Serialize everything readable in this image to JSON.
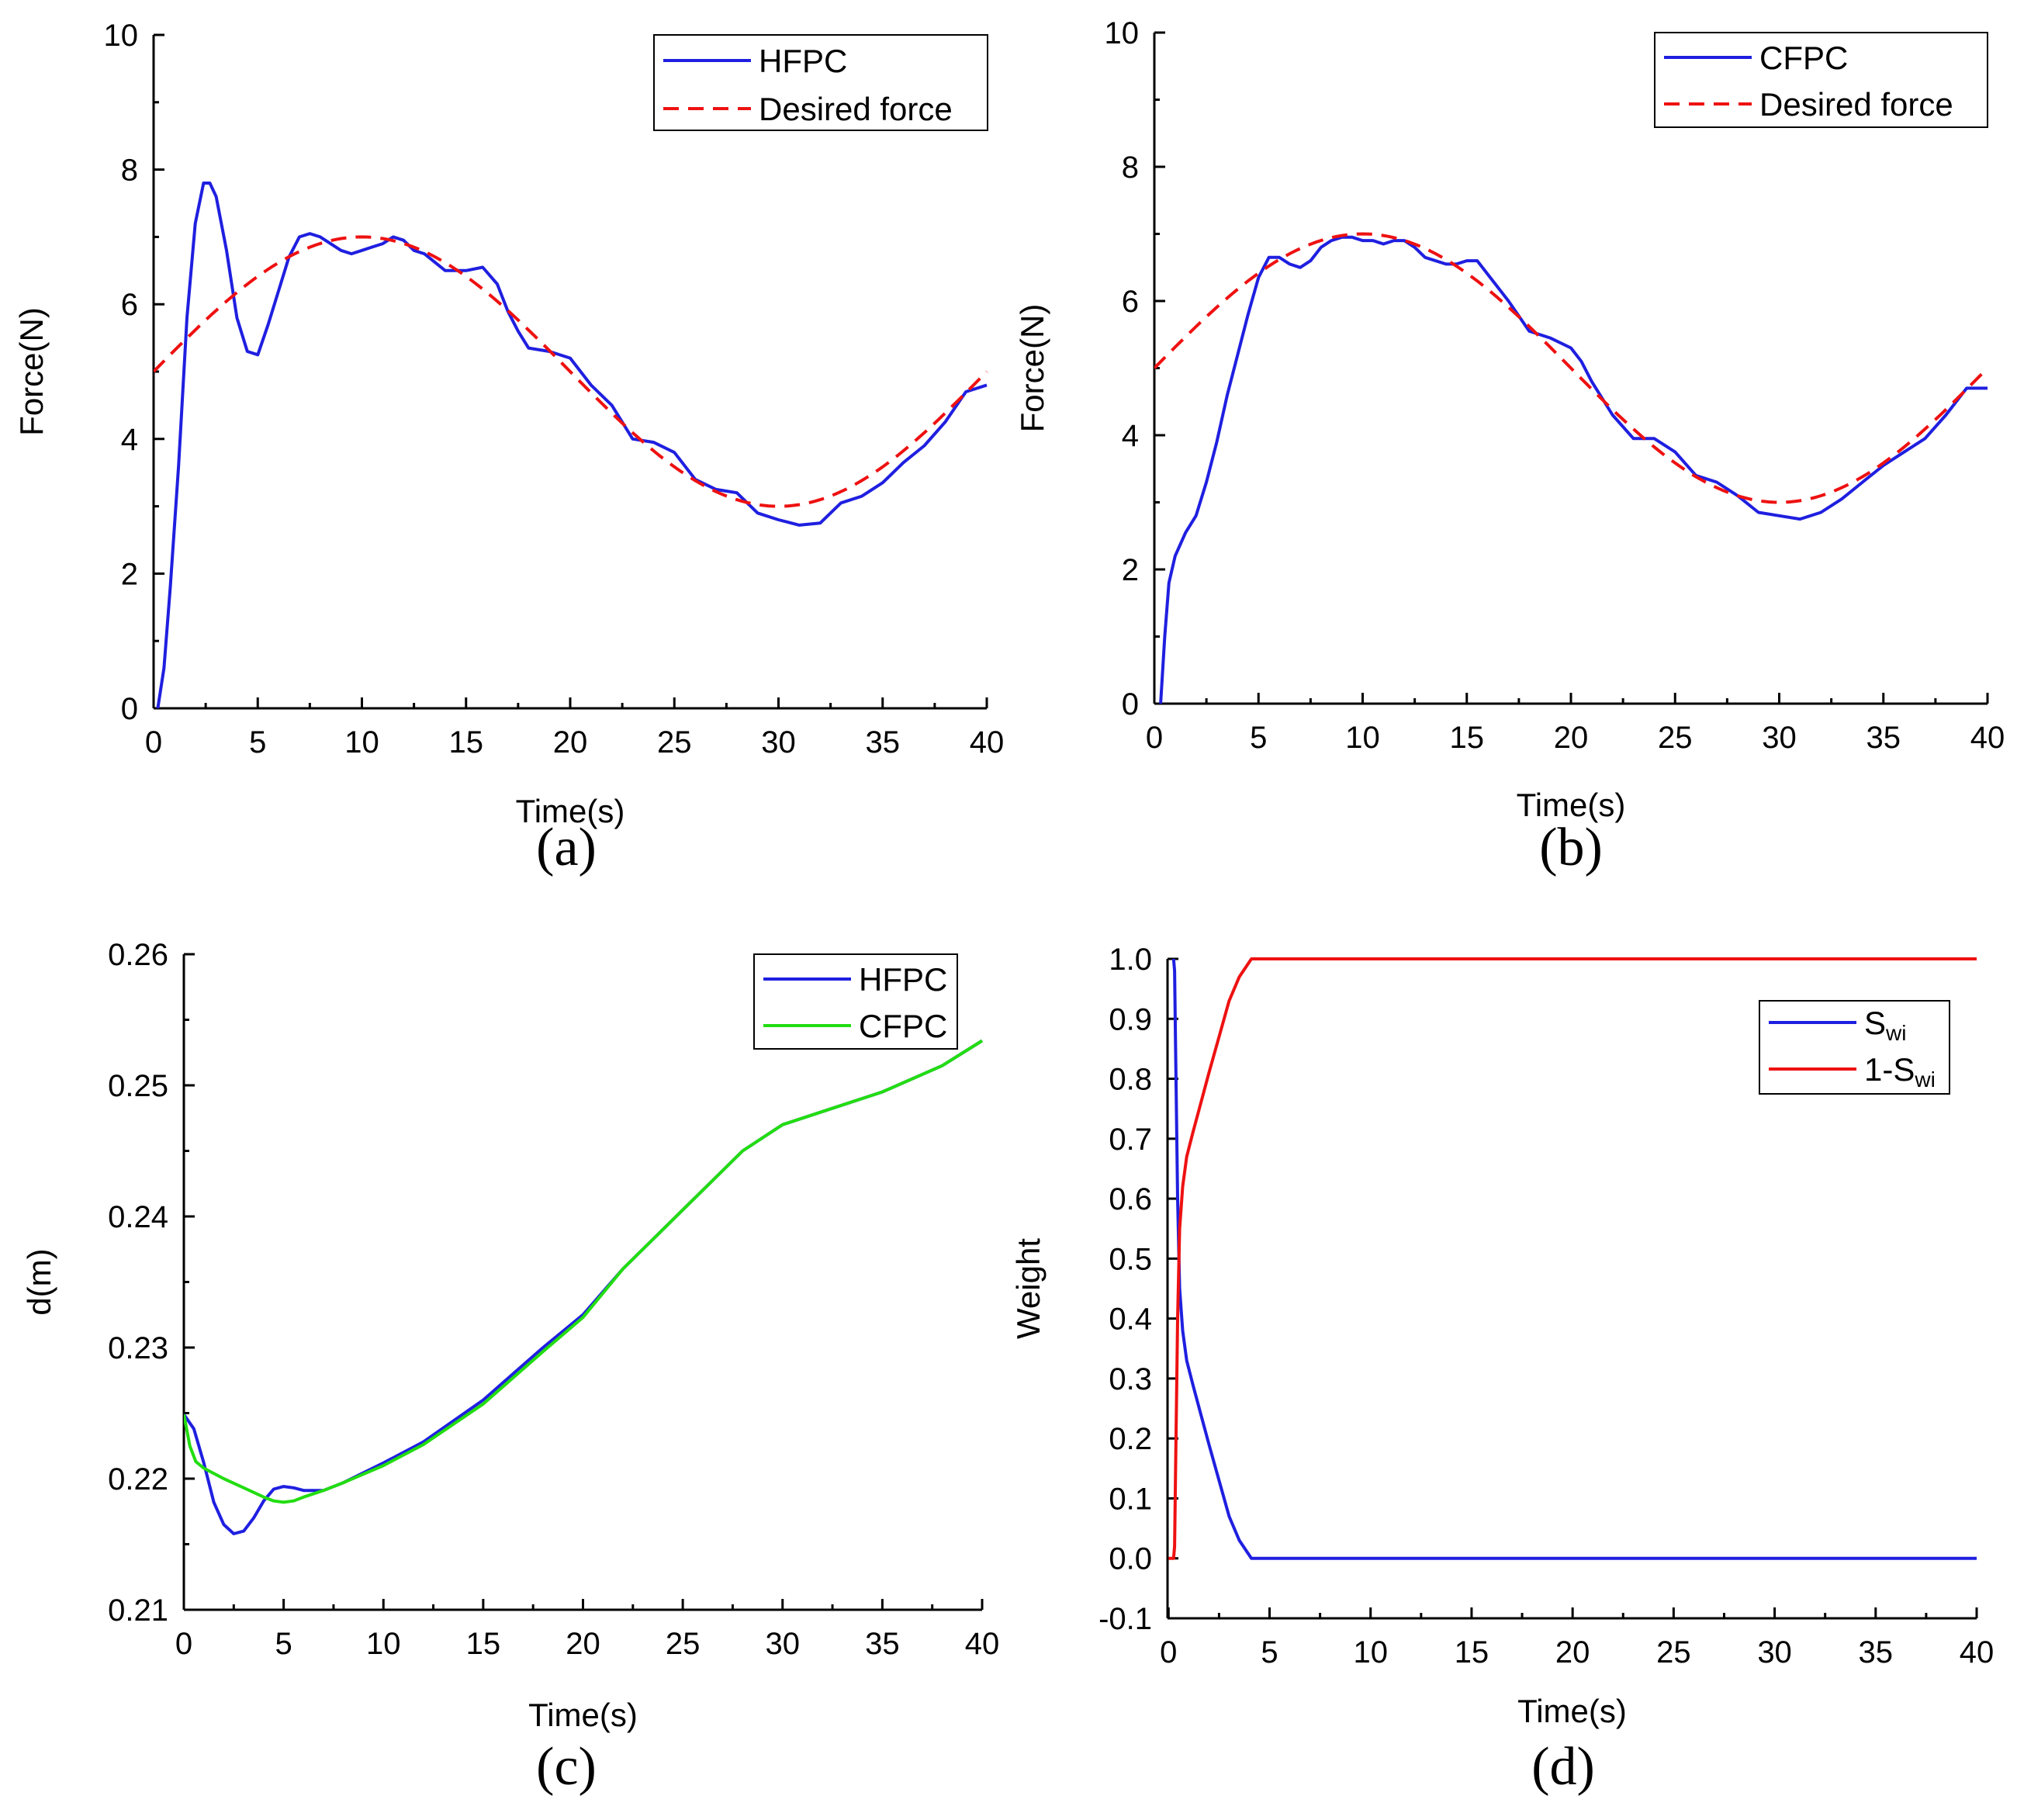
{
  "chart_data": [
    {
      "type": "line",
      "caption": "(a)",
      "xlabel": "Time(s)",
      "ylabel": "Force(N)",
      "xlim": [
        0,
        40
      ],
      "ylim": [
        0,
        10
      ],
      "xticks": [
        0,
        5,
        10,
        15,
        20,
        25,
        30,
        35,
        40
      ],
      "yticks": [
        0,
        2,
        4,
        6,
        8,
        10
      ],
      "xtick_labels": [
        "0",
        "5",
        "10",
        "15",
        "20",
        "25",
        "30",
        "35",
        "40"
      ],
      "ytick_labels": [
        "0",
        "2",
        "4",
        "6",
        "8",
        "10"
      ],
      "legend_position": "top-right",
      "series": [
        {
          "name": "HFPC",
          "color": "#1f1fe0",
          "style": "solid",
          "x": [
            0.2,
            0.5,
            0.8,
            1.2,
            1.6,
            2.0,
            2.4,
            2.7,
            3.0,
            3.5,
            4.0,
            4.5,
            5.0,
            5.5,
            6.0,
            6.5,
            7.0,
            7.5,
            8.0,
            9.0,
            9.5,
            10.0,
            10.5,
            11.0,
            11.5,
            12.0,
            12.5,
            13.0,
            14.0,
            15.0,
            15.8,
            16.5,
            17.0,
            17.5,
            18.0,
            19.0,
            20.0,
            21.0,
            22.0,
            23.0,
            24.0,
            25.0,
            26.0,
            27.0,
            28.0,
            29.0,
            30.0,
            31.0,
            32.0,
            33.0,
            34.0,
            35.0,
            36.0,
            37.0,
            38.0,
            39.0,
            40.0
          ],
          "y": [
            0.0,
            0.6,
            1.8,
            3.6,
            5.8,
            7.2,
            7.8,
            7.8,
            7.6,
            6.8,
            5.8,
            5.3,
            5.25,
            5.7,
            6.2,
            6.7,
            7.0,
            7.05,
            7.0,
            6.8,
            6.75,
            6.8,
            6.85,
            6.9,
            7.0,
            6.95,
            6.8,
            6.75,
            6.5,
            6.5,
            6.55,
            6.3,
            5.9,
            5.6,
            5.35,
            5.3,
            5.2,
            4.8,
            4.5,
            4.0,
            3.95,
            3.8,
            3.4,
            3.25,
            3.2,
            2.9,
            2.8,
            2.72,
            2.75,
            3.05,
            3.15,
            3.35,
            3.65,
            3.9,
            4.25,
            4.7,
            4.8
          ]
        },
        {
          "name": "Desired force",
          "color": "#ee1111",
          "style": "dashed",
          "function": "5+2*sin(pi*t/20)"
        }
      ]
    },
    {
      "type": "line",
      "caption": "(b)",
      "xlabel": "Time(s)",
      "ylabel": "Force(N)",
      "xlim": [
        0,
        40
      ],
      "ylim": [
        0,
        10
      ],
      "xticks": [
        0,
        5,
        10,
        15,
        20,
        25,
        30,
        35,
        40
      ],
      "yticks": [
        0,
        2,
        4,
        6,
        8,
        10
      ],
      "xtick_labels": [
        "0",
        "5",
        "10",
        "15",
        "20",
        "25",
        "30",
        "35",
        "40"
      ],
      "ytick_labels": [
        "0",
        "2",
        "4",
        "6",
        "8",
        "10"
      ],
      "legend_position": "top-right",
      "series": [
        {
          "name": "CFPC",
          "color": "#1f1fe0",
          "style": "solid",
          "x": [
            0.3,
            0.5,
            0.7,
            1.0,
            1.5,
            2.0,
            2.5,
            3.0,
            3.5,
            4.0,
            4.5,
            5.0,
            5.5,
            6.0,
            6.5,
            7.0,
            7.5,
            8.0,
            8.5,
            9.0,
            9.5,
            10.0,
            10.5,
            11.0,
            11.5,
            12.0,
            12.5,
            13.0,
            14.0,
            14.5,
            15.0,
            15.5,
            16.0,
            17.0,
            18.0,
            19.0,
            20.0,
            20.5,
            21.0,
            22.0,
            23.0,
            24.0,
            25.0,
            26.0,
            27.0,
            28.0,
            29.0,
            30.0,
            31.0,
            32.0,
            33.0,
            34.0,
            35.0,
            36.0,
            37.0,
            38.0,
            39.0,
            40.0
          ],
          "y": [
            0.0,
            1.0,
            1.8,
            2.2,
            2.55,
            2.8,
            3.3,
            3.9,
            4.6,
            5.2,
            5.8,
            6.35,
            6.65,
            6.65,
            6.55,
            6.5,
            6.6,
            6.8,
            6.9,
            6.95,
            6.95,
            6.9,
            6.9,
            6.85,
            6.9,
            6.9,
            6.8,
            6.65,
            6.55,
            6.55,
            6.6,
            6.6,
            6.4,
            6.0,
            5.55,
            5.45,
            5.3,
            5.1,
            4.8,
            4.3,
            3.95,
            3.95,
            3.75,
            3.4,
            3.3,
            3.1,
            2.85,
            2.8,
            2.75,
            2.85,
            3.05,
            3.3,
            3.55,
            3.75,
            3.95,
            4.3,
            4.7,
            4.7
          ]
        },
        {
          "name": "Desired force",
          "color": "#ee1111",
          "style": "dashed",
          "function": "5+2*sin(pi*t/20)"
        }
      ]
    },
    {
      "type": "line",
      "caption": "(c)",
      "xlabel": "Time(s)",
      "ylabel": "d(m)",
      "xlim": [
        0,
        40
      ],
      "ylim": [
        0.21,
        0.26
      ],
      "xticks": [
        0,
        5,
        10,
        15,
        20,
        25,
        30,
        35,
        40
      ],
      "yticks": [
        0.21,
        0.22,
        0.23,
        0.24,
        0.25,
        0.26
      ],
      "xtick_labels": [
        "0",
        "5",
        "10",
        "15",
        "20",
        "25",
        "30",
        "35",
        "40"
      ],
      "ytick_labels": [
        "0.21",
        "0.22",
        "0.23",
        "0.24",
        "0.25",
        "0.26"
      ],
      "legend_position": "top-right",
      "series": [
        {
          "name": "HFPC",
          "color": "#1f1fe0",
          "style": "solid",
          "x": [
            0,
            0.5,
            1.0,
            1.5,
            2.0,
            2.5,
            3.0,
            3.5,
            4.0,
            4.5,
            5.0,
            5.5,
            6.0,
            7.0,
            8.0,
            10.0,
            12.0,
            15.0,
            18.0,
            20.0,
            22.0,
            25.0,
            28.0,
            30.0,
            32.0,
            35.0,
            38.0,
            40.0
          ],
          "y": [
            0.2249,
            0.2238,
            0.2212,
            0.2182,
            0.2165,
            0.2158,
            0.216,
            0.217,
            0.2183,
            0.2192,
            0.2194,
            0.2193,
            0.2191,
            0.2191,
            0.2197,
            0.2212,
            0.2228,
            0.226,
            0.23,
            0.2325,
            0.236,
            0.2405,
            0.245,
            0.247,
            0.248,
            0.2495,
            0.2515,
            0.2534
          ]
        },
        {
          "name": "CFPC",
          "color": "#22dd11",
          "style": "solid",
          "x": [
            0,
            0.3,
            0.6,
            1.0,
            2.0,
            3.0,
            4.0,
            4.5,
            5.0,
            5.5,
            6.0,
            7.0,
            8.0,
            10.0,
            12.0,
            15.0,
            18.0,
            20.0,
            22.0,
            25.0,
            28.0,
            30.0,
            32.0,
            35.0,
            38.0,
            40.0
          ],
          "y": [
            0.2249,
            0.2225,
            0.2213,
            0.2208,
            0.22,
            0.2193,
            0.2186,
            0.2183,
            0.2182,
            0.2183,
            0.2186,
            0.2191,
            0.2197,
            0.221,
            0.2226,
            0.2257,
            0.2297,
            0.2323,
            0.236,
            0.2405,
            0.245,
            0.247,
            0.248,
            0.2495,
            0.2515,
            0.2534
          ]
        }
      ]
    },
    {
      "type": "line",
      "caption": "(d)",
      "xlabel": "Time(s)",
      "ylabel": "Weight",
      "xlim": [
        -0.05,
        40
      ],
      "ylim": [
        -0.1,
        1.0
      ],
      "xticks": [
        0,
        5,
        10,
        15,
        20,
        25,
        30,
        35,
        40
      ],
      "yticks": [
        -0.1,
        0.0,
        0.1,
        0.2,
        0.3,
        0.4,
        0.5,
        0.6,
        0.7,
        0.8,
        0.9,
        1.0
      ],
      "xtick_labels": [
        "0",
        "5",
        "10",
        "15",
        "20",
        "25",
        "30",
        "35",
        "40"
      ],
      "ytick_labels": [
        "-0.1",
        "0.0",
        "0.1",
        "0.2",
        "0.3",
        "0.4",
        "0.5",
        "0.6",
        "0.7",
        "0.8",
        "0.9",
        "1.0"
      ],
      "legend_position": "right",
      "series": [
        {
          "name": "Swi",
          "label_main": "S",
          "label_sub": "wi",
          "color": "#1f1fe0",
          "style": "solid",
          "x": [
            0.25,
            0.3,
            0.35,
            0.45,
            0.55,
            0.7,
            0.9,
            1.2,
            1.6,
            2.0,
            2.5,
            3.0,
            3.5,
            3.9,
            4.1,
            40.0
          ],
          "y": [
            1.0,
            0.98,
            0.85,
            0.6,
            0.45,
            0.38,
            0.33,
            0.29,
            0.24,
            0.19,
            0.13,
            0.07,
            0.03,
            0.01,
            0.0,
            0.0
          ]
        },
        {
          "name": "1-Swi",
          "label_main": "1-S",
          "label_sub": "wi",
          "color": "#ee1111",
          "style": "solid",
          "x": [
            0.0,
            0.25,
            0.3,
            0.35,
            0.45,
            0.55,
            0.7,
            0.9,
            1.2,
            1.6,
            2.0,
            2.5,
            3.0,
            3.5,
            3.9,
            4.1,
            40.0
          ],
          "y": [
            0.0,
            0.0,
            0.02,
            0.15,
            0.4,
            0.55,
            0.62,
            0.67,
            0.71,
            0.76,
            0.81,
            0.87,
            0.93,
            0.97,
            0.99,
            1.0,
            1.0
          ]
        }
      ]
    }
  ]
}
